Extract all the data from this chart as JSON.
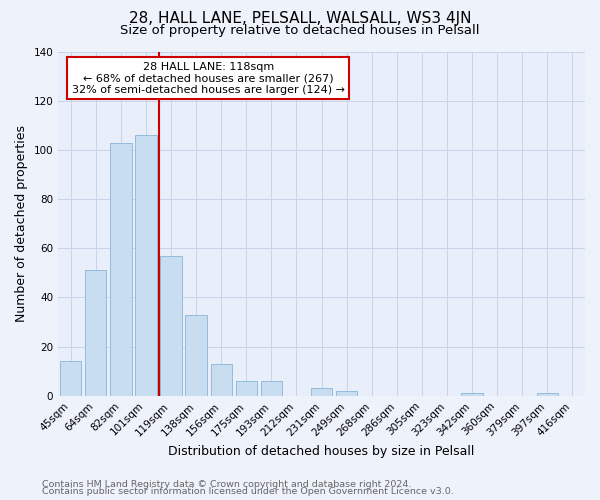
{
  "title": "28, HALL LANE, PELSALL, WALSALL, WS3 4JN",
  "subtitle": "Size of property relative to detached houses in Pelsall",
  "xlabel": "Distribution of detached houses by size in Pelsall",
  "ylabel": "Number of detached properties",
  "bar_color": "#c9ddf0",
  "bar_edge_color": "#8ab4d8",
  "background_color": "#eef2fb",
  "plot_bg_color": "#e8eefa",
  "grid_color": "#c8d4ea",
  "categories": [
    "45sqm",
    "64sqm",
    "82sqm",
    "101sqm",
    "119sqm",
    "138sqm",
    "156sqm",
    "175sqm",
    "193sqm",
    "212sqm",
    "231sqm",
    "249sqm",
    "268sqm",
    "286sqm",
    "305sqm",
    "323sqm",
    "342sqm",
    "360sqm",
    "379sqm",
    "397sqm",
    "416sqm"
  ],
  "values": [
    14,
    51,
    103,
    106,
    57,
    33,
    13,
    6,
    6,
    0,
    3,
    2,
    0,
    0,
    0,
    0,
    1,
    0,
    0,
    1,
    0
  ],
  "property_line_index": 3,
  "property_line_color": "#cc0000",
  "annotation_title": "28 HALL LANE: 118sqm",
  "annotation_line1": "← 68% of detached houses are smaller (267)",
  "annotation_line2": "32% of semi-detached houses are larger (124) →",
  "annotation_box_color": "#ffffff",
  "annotation_box_edge": "#cc0000",
  "ylim": [
    0,
    140
  ],
  "yticks": [
    0,
    20,
    40,
    60,
    80,
    100,
    120,
    140
  ],
  "footer1": "Contains HM Land Registry data © Crown copyright and database right 2024.",
  "footer2": "Contains public sector information licensed under the Open Government Licence v3.0.",
  "title_fontsize": 11,
  "subtitle_fontsize": 9.5,
  "axis_label_fontsize": 9,
  "tick_fontsize": 7.5,
  "footer_fontsize": 6.8,
  "annotation_fontsize": 8
}
